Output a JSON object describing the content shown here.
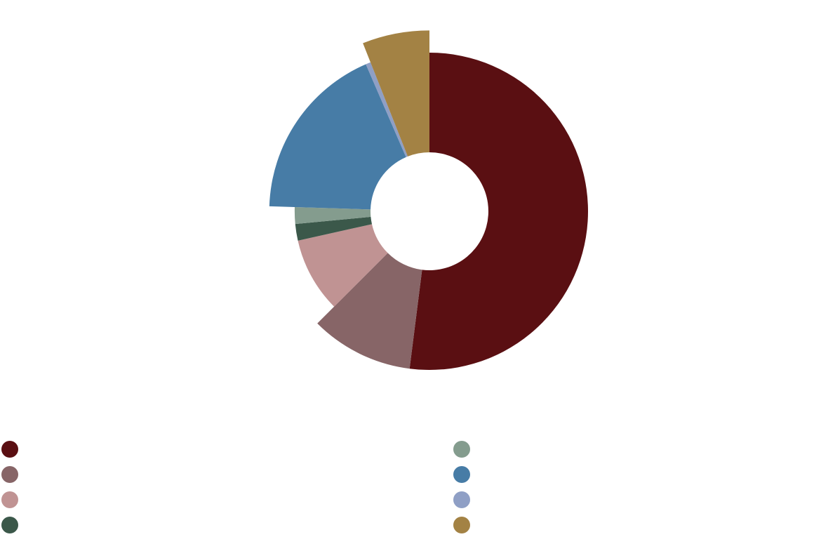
{
  "chart_data": {
    "type": "pie",
    "variant": "donut-variable-radius",
    "title": "",
    "series": [
      {
        "slices": [
          {
            "label": "",
            "value": 52.0,
            "relative_radius": 1.0,
            "color": "#5a0f12"
          },
          {
            "label": "",
            "value": 10.5,
            "relative_radius": 1.0,
            "color": "#876567"
          },
          {
            "label": "",
            "value": 9.0,
            "relative_radius": 0.85,
            "color": "#c09393"
          },
          {
            "label": "",
            "value": 2.0,
            "relative_radius": 0.85,
            "color": "#3b584a"
          },
          {
            "label": "",
            "value": 2.0,
            "relative_radius": 0.85,
            "color": "#849c8e"
          },
          {
            "label": "",
            "value": 18.0,
            "relative_radius": 1.01,
            "color": "#477ca6"
          },
          {
            "label": "",
            "value": 0.5,
            "relative_radius": 1.01,
            "color": "#8f9fc5"
          },
          {
            "label": "",
            "value": 6.0,
            "relative_radius": 1.14,
            "color": "#a38244"
          }
        ]
      }
    ],
    "legend": {
      "position": "bottom",
      "columns": 2
    }
  }
}
